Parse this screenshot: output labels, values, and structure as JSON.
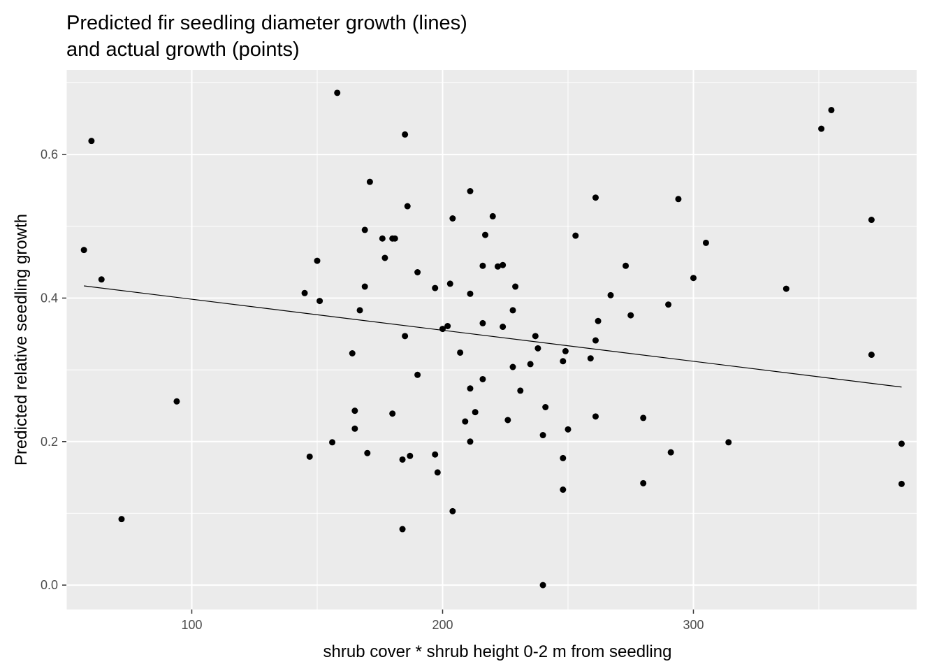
{
  "chart_data": {
    "type": "scatter",
    "title_lines": [
      "Predicted fir seedling diameter growth (lines)",
      "and actual growth (points)"
    ],
    "xlabel": "shrub cover * shrub height 0-2 m from seedling",
    "ylabel": "Predicted relative seedling growth",
    "xlim": [
      50,
      389
    ],
    "ylim": [
      -0.034,
      0.718
    ],
    "x_ticks": [
      100,
      200,
      300
    ],
    "x_tick_labels": [
      "100",
      "200",
      "300"
    ],
    "y_ticks": [
      0.0,
      0.2,
      0.4,
      0.6
    ],
    "y_tick_labels": [
      "0.0",
      "0.2",
      "0.4",
      "0.6"
    ],
    "grid": true,
    "colors": {
      "panel_background": "#ebebeb",
      "grid_major": "#ffffff",
      "points": "#000000",
      "line": "#000000"
    },
    "trend_line": {
      "x": [
        57,
        383
      ],
      "y": [
        0.417,
        0.276
      ]
    },
    "points": [
      [
        57,
        0.467
      ],
      [
        60,
        0.619
      ],
      [
        64,
        0.426
      ],
      [
        72,
        0.092
      ],
      [
        94,
        0.256
      ],
      [
        145,
        0.407
      ],
      [
        147,
        0.179
      ],
      [
        150,
        0.452
      ],
      [
        151,
        0.396
      ],
      [
        156,
        0.199
      ],
      [
        158,
        0.686
      ],
      [
        164,
        0.323
      ],
      [
        165,
        0.243
      ],
      [
        165,
        0.218
      ],
      [
        167,
        0.383
      ],
      [
        169,
        0.495
      ],
      [
        169,
        0.416
      ],
      [
        170,
        0.184
      ],
      [
        171,
        0.562
      ],
      [
        176,
        0.483
      ],
      [
        177,
        0.456
      ],
      [
        180,
        0.483
      ],
      [
        181,
        0.483
      ],
      [
        180,
        0.239
      ],
      [
        184,
        0.078
      ],
      [
        184,
        0.175
      ],
      [
        185,
        0.347
      ],
      [
        185,
        0.628
      ],
      [
        186,
        0.528
      ],
      [
        187,
        0.18
      ],
      [
        190,
        0.436
      ],
      [
        190,
        0.293
      ],
      [
        197,
        0.414
      ],
      [
        197,
        0.182
      ],
      [
        198,
        0.157
      ],
      [
        200,
        0.357
      ],
      [
        202,
        0.361
      ],
      [
        203,
        0.42
      ],
      [
        204,
        0.103
      ],
      [
        204,
        0.511
      ],
      [
        207,
        0.324
      ],
      [
        209,
        0.228
      ],
      [
        211,
        0.549
      ],
      [
        211,
        0.406
      ],
      [
        211,
        0.274
      ],
      [
        211,
        0.2
      ],
      [
        213,
        0.241
      ],
      [
        216,
        0.445
      ],
      [
        216,
        0.365
      ],
      [
        216,
        0.287
      ],
      [
        217,
        0.488
      ],
      [
        220,
        0.514
      ],
      [
        222,
        0.444
      ],
      [
        224,
        0.446
      ],
      [
        224,
        0.36
      ],
      [
        226,
        0.23
      ],
      [
        228,
        0.304
      ],
      [
        228,
        0.383
      ],
      [
        229,
        0.416
      ],
      [
        231,
        0.271
      ],
      [
        235,
        0.308
      ],
      [
        237,
        0.347
      ],
      [
        238,
        0.33
      ],
      [
        240,
        0.209
      ],
      [
        240,
        0.0
      ],
      [
        241,
        0.248
      ],
      [
        248,
        0.312
      ],
      [
        248,
        0.177
      ],
      [
        248,
        0.133
      ],
      [
        249,
        0.326
      ],
      [
        250,
        0.217
      ],
      [
        253,
        0.487
      ],
      [
        259,
        0.316
      ],
      [
        261,
        0.54
      ],
      [
        261,
        0.341
      ],
      [
        262,
        0.368
      ],
      [
        261,
        0.235
      ],
      [
        267,
        0.404
      ],
      [
        273,
        0.445
      ],
      [
        275,
        0.376
      ],
      [
        280,
        0.233
      ],
      [
        280,
        0.142
      ],
      [
        290,
        0.391
      ],
      [
        291,
        0.185
      ],
      [
        294,
        0.538
      ],
      [
        300,
        0.428
      ],
      [
        305,
        0.477
      ],
      [
        314,
        0.199
      ],
      [
        337,
        0.413
      ],
      [
        351,
        0.636
      ],
      [
        355,
        0.662
      ],
      [
        371,
        0.509
      ],
      [
        371,
        0.321
      ],
      [
        383,
        0.197
      ],
      [
        383,
        0.141
      ]
    ]
  }
}
